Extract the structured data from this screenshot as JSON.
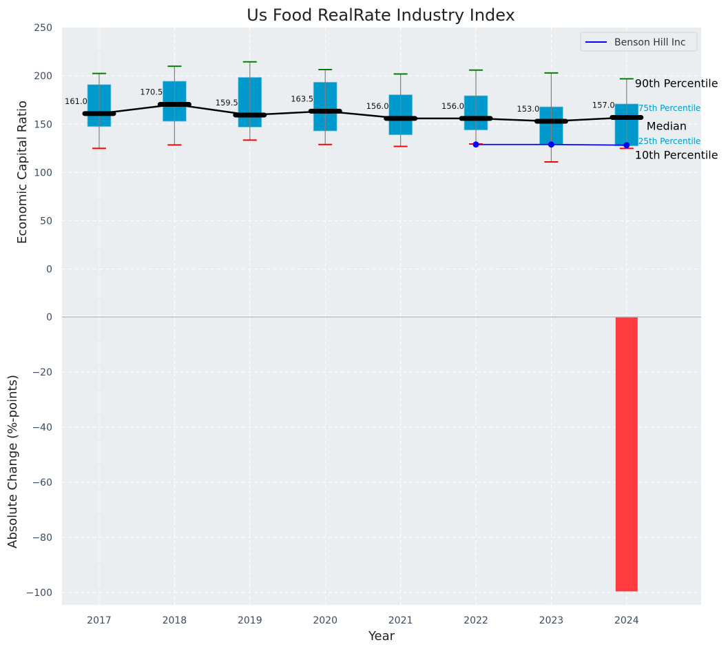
{
  "chart_data": [
    {
      "type": "box",
      "title": "Us Food RealRate Industry Index",
      "xlabel": "",
      "ylabel": "Economic Capital Ratio",
      "ylim": [
        -48,
        250
      ],
      "yticks": [
        0,
        50,
        100,
        150,
        200,
        250
      ],
      "grid": true,
      "legend": {
        "placement": "top-right",
        "entries": [
          {
            "label": "Benson Hill Inc",
            "color": "#0000ff"
          }
        ]
      },
      "categories": [
        "2017",
        "2018",
        "2019",
        "2020",
        "2021",
        "2022",
        "2023",
        "2024"
      ],
      "percentiles": {
        "p90": [
          202.5,
          210.0,
          214.5,
          206.5,
          202.0,
          206.0,
          203.0,
          197.0
        ],
        "p75": [
          191.0,
          194.5,
          198.5,
          193.5,
          180.5,
          179.5,
          168.0,
          171.0
        ],
        "median": [
          161.0,
          170.5,
          159.5,
          163.5,
          156.0,
          156.0,
          153.0,
          157.0
        ],
        "p25": [
          147.5,
          153.0,
          147.0,
          143.0,
          139.0,
          144.0,
          129.0,
          127.5
        ],
        "p10": [
          125.0,
          128.5,
          133.5,
          129.0,
          127.0,
          129.5,
          111.0,
          125.0
        ]
      },
      "median_labels": [
        "161.0",
        "170.5",
        "159.5",
        "163.5",
        "156.0",
        "156.0",
        "153.0",
        "157.0"
      ],
      "series": [
        {
          "name": "Benson Hill Inc",
          "x": [
            "2022",
            "2023",
            "2024"
          ],
          "values": [
            129.0,
            129.0,
            128.3
          ],
          "color": "#0000ff"
        }
      ],
      "annotations": {
        "p90": "90th Percentile",
        "p75": "75th Percentile",
        "median": "Median",
        "p25": "25th Percentile",
        "p10": "10th Percentile"
      },
      "colors": {
        "box": "#0099cc",
        "p90_cap": "#008000",
        "p10_cap": "#ff0000",
        "median": "#000000",
        "whisker": "#808080",
        "panel_bg": "#eaeef0"
      }
    },
    {
      "type": "bar",
      "xlabel": "Year",
      "ylabel": "Absolute Change (%-points)",
      "ylim": [
        -104.5,
        0
      ],
      "yticks": [
        0,
        -20,
        -40,
        -60,
        -80,
        -100
      ],
      "grid": true,
      "categories": [
        "2017",
        "2018",
        "2019",
        "2020",
        "2021",
        "2022",
        "2023",
        "2024"
      ],
      "values": [
        null,
        null,
        null,
        null,
        null,
        null,
        null,
        -99.6
      ],
      "color": "#ff3b3f"
    }
  ]
}
